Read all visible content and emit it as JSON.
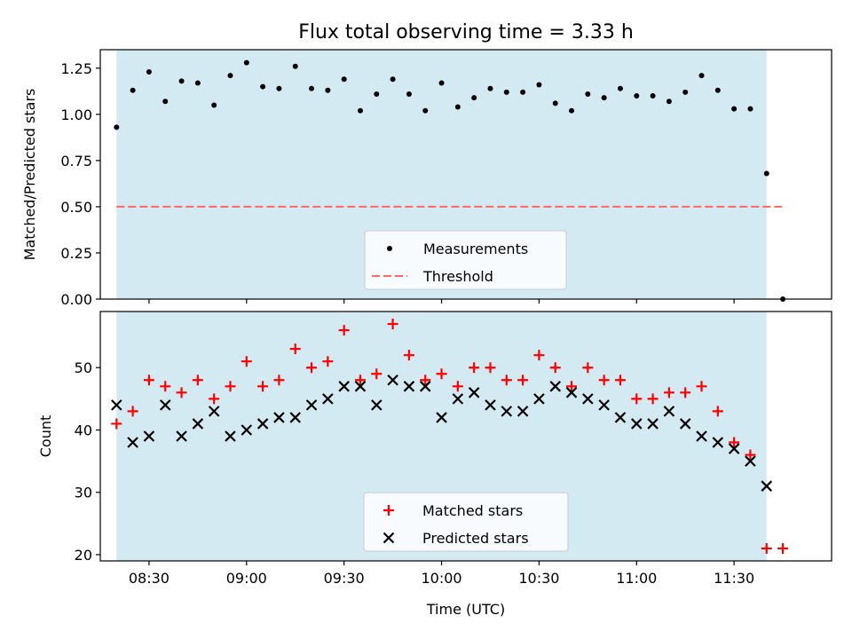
{
  "title": "Flux total observing time = 3.33 h",
  "chart_data": [
    {
      "type": "scatter",
      "ylabel": "Matched/Predicted stars",
      "ylim": [
        0,
        1.35
      ],
      "xlim": [
        "08:15",
        "12:00"
      ],
      "yticks": [
        "0.00",
        "0.25",
        "0.50",
        "0.75",
        "1.00",
        "1.25"
      ],
      "shaded_interval": [
        "08:20",
        "11:40"
      ],
      "shade_color": "#add8e6",
      "threshold": {
        "name": "Threshold",
        "value": 0.5,
        "x_range": [
          "08:20",
          "11:45"
        ],
        "color": "#ff6666",
        "style": "dashed"
      },
      "legend_placement": "lower center",
      "series": [
        {
          "name": "Measurements",
          "color": "#000000",
          "x": [
            "08:20",
            "08:25",
            "08:30",
            "08:35",
            "08:40",
            "08:45",
            "08:50",
            "08:55",
            "09:00",
            "09:05",
            "09:10",
            "09:15",
            "09:20",
            "09:25",
            "09:30",
            "09:35",
            "09:40",
            "09:45",
            "09:50",
            "09:55",
            "10:00",
            "10:05",
            "10:10",
            "10:15",
            "10:20",
            "10:25",
            "10:30",
            "10:35",
            "10:40",
            "10:45",
            "10:50",
            "10:55",
            "11:00",
            "11:05",
            "11:10",
            "11:15",
            "11:20",
            "11:25",
            "11:30",
            "11:35",
            "11:40",
            "11:45"
          ],
          "y": [
            0.93,
            1.13,
            1.23,
            1.07,
            1.18,
            1.17,
            1.05,
            1.21,
            1.28,
            1.15,
            1.14,
            1.26,
            1.14,
            1.13,
            1.19,
            1.02,
            1.11,
            1.19,
            1.11,
            1.02,
            1.17,
            1.04,
            1.09,
            1.14,
            1.12,
            1.12,
            1.16,
            1.06,
            1.02,
            1.11,
            1.09,
            1.14,
            1.1,
            1.1,
            1.07,
            1.12,
            1.21,
            1.13,
            1.03,
            1.03,
            0.68,
            0.0
          ]
        }
      ]
    },
    {
      "type": "scatter",
      "xlabel": "Time (UTC)",
      "ylabel": "Count",
      "ylim": [
        19,
        59
      ],
      "xlim": [
        "08:15",
        "12:00"
      ],
      "yticks": [
        "20",
        "30",
        "40",
        "50"
      ],
      "xticks": [
        "08:30",
        "09:00",
        "09:30",
        "10:00",
        "10:30",
        "11:00",
        "11:30"
      ],
      "shaded_interval": [
        "08:20",
        "11:40"
      ],
      "shade_color": "#add8e6",
      "legend_placement": "lower center",
      "series": [
        {
          "name": "Matched stars",
          "marker": "+",
          "color": "#ff0000",
          "x": [
            "08:20",
            "08:25",
            "08:30",
            "08:35",
            "08:40",
            "08:45",
            "08:50",
            "08:55",
            "09:00",
            "09:05",
            "09:10",
            "09:15",
            "09:20",
            "09:25",
            "09:30",
            "09:35",
            "09:40",
            "09:45",
            "09:50",
            "09:55",
            "10:00",
            "10:05",
            "10:10",
            "10:15",
            "10:20",
            "10:25",
            "10:30",
            "10:35",
            "10:40",
            "10:45",
            "10:50",
            "10:55",
            "11:00",
            "11:05",
            "11:10",
            "11:15",
            "11:20",
            "11:25",
            "11:30",
            "11:35",
            "11:40",
            "11:45"
          ],
          "y": [
            41,
            43,
            48,
            47,
            46,
            48,
            45,
            47,
            51,
            47,
            48,
            53,
            50,
            51,
            56,
            48,
            49,
            57,
            52,
            48,
            49,
            47,
            50,
            50,
            48,
            48,
            52,
            50,
            47,
            50,
            48,
            48,
            45,
            45,
            46,
            46,
            47,
            43,
            38,
            36,
            21,
            21
          ]
        },
        {
          "name": "Predicted stars",
          "marker": "x",
          "color": "#000000",
          "x": [
            "08:20",
            "08:25",
            "08:30",
            "08:35",
            "08:40",
            "08:45",
            "08:50",
            "08:55",
            "09:00",
            "09:05",
            "09:10",
            "09:15",
            "09:20",
            "09:25",
            "09:30",
            "09:35",
            "09:40",
            "09:45",
            "09:50",
            "09:55",
            "10:00",
            "10:05",
            "10:10",
            "10:15",
            "10:20",
            "10:25",
            "10:30",
            "10:35",
            "10:40",
            "10:45",
            "10:50",
            "10:55",
            "11:00",
            "11:05",
            "11:10",
            "11:15",
            "11:20",
            "11:25",
            "11:30",
            "11:35",
            "11:40"
          ],
          "y": [
            44,
            38,
            39,
            44,
            39,
            41,
            43,
            39,
            40,
            41,
            42,
            42,
            44,
            45,
            47,
            47,
            44,
            48,
            47,
            47,
            42,
            45,
            46,
            44,
            43,
            43,
            45,
            47,
            46,
            45,
            44,
            42,
            41,
            41,
            43,
            41,
            39,
            38,
            37,
            35,
            31
          ]
        }
      ]
    }
  ]
}
